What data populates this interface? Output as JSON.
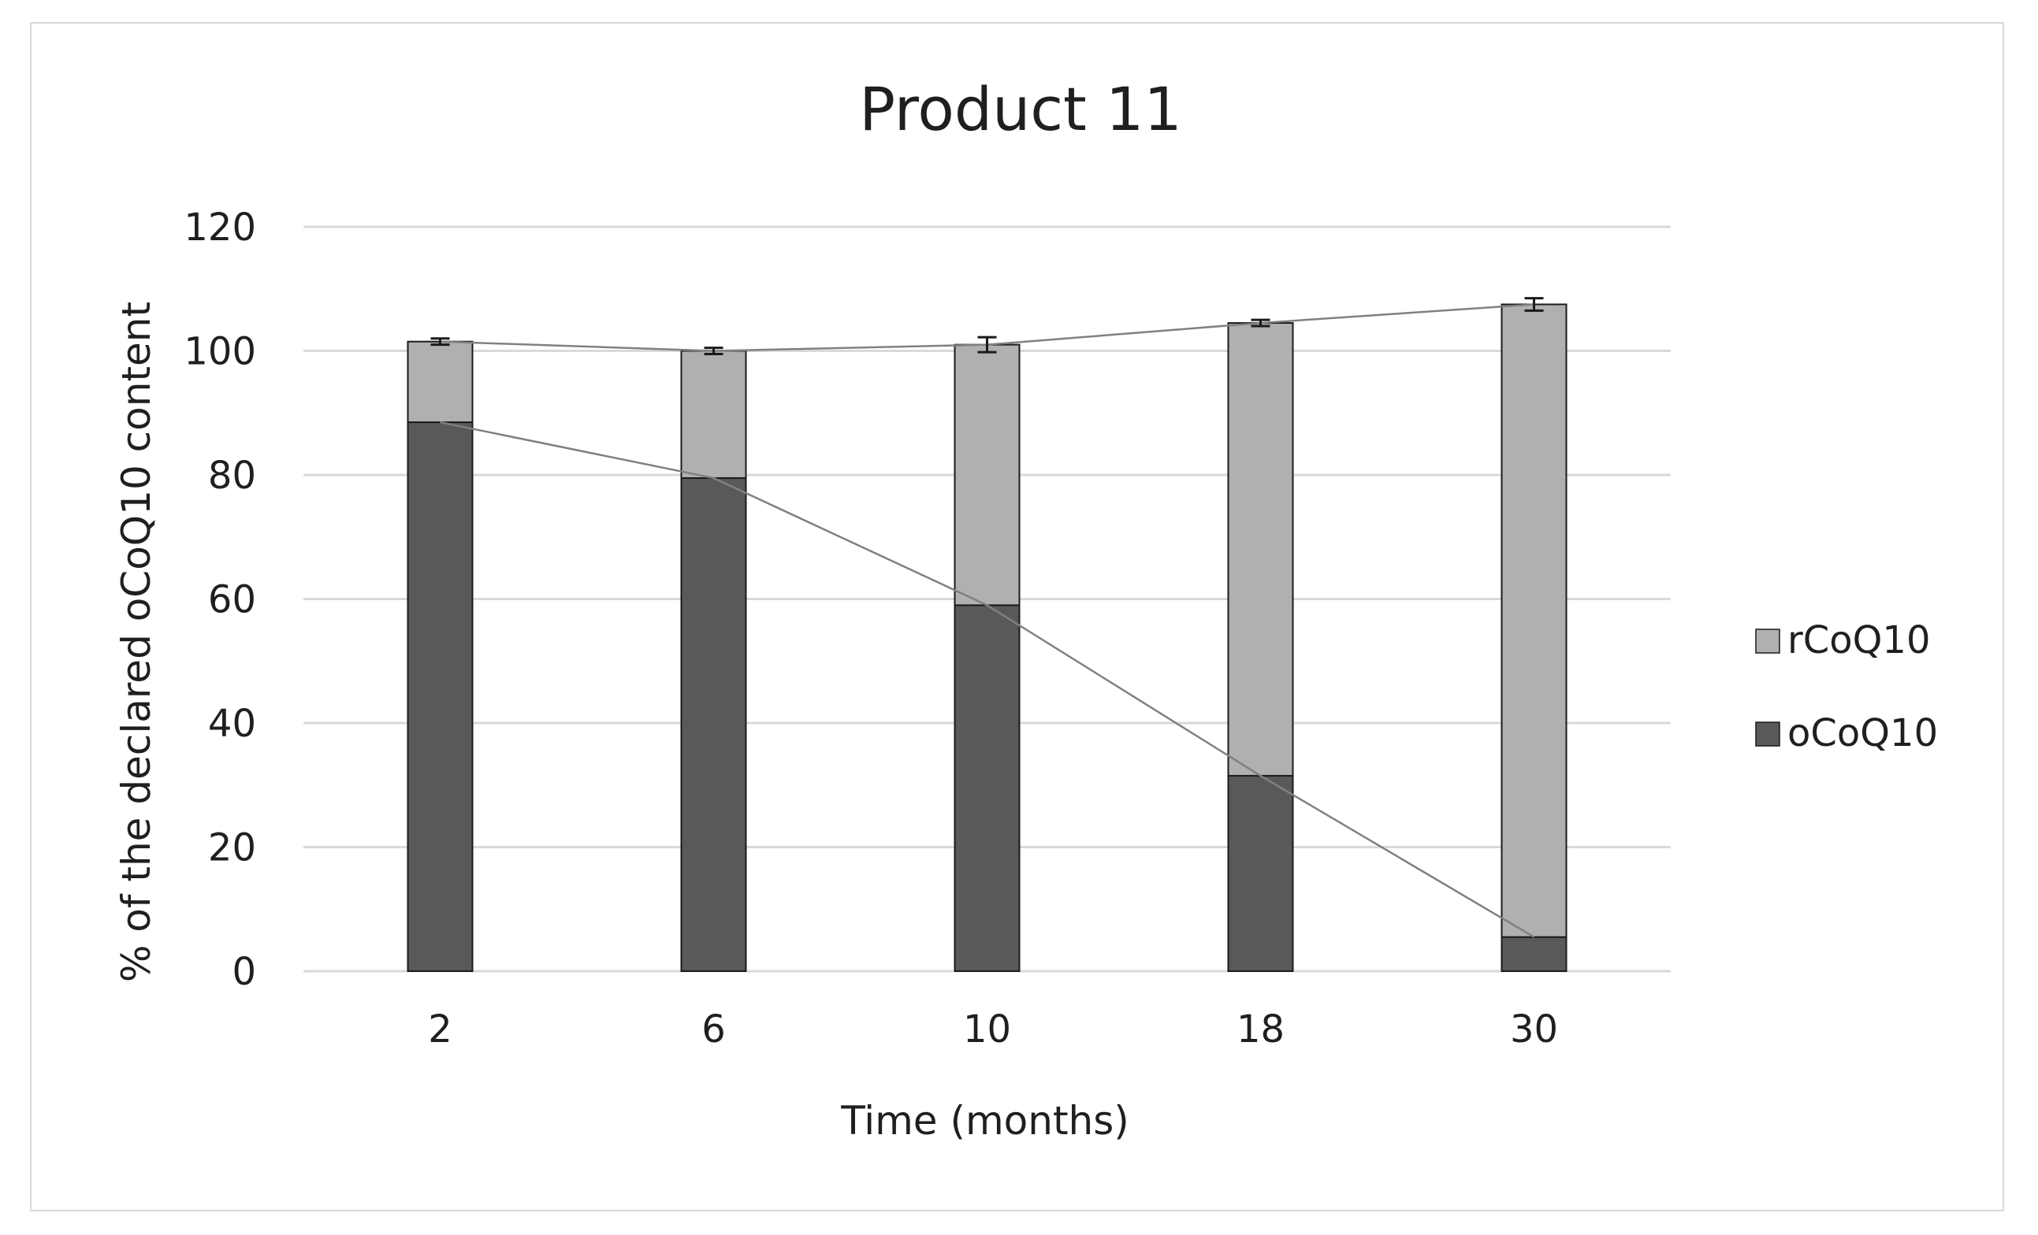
{
  "chart_data": {
    "type": "bar",
    "stacked": true,
    "title": "Product 11",
    "xlabel": "Time (months)",
    "ylabel": "% of the declared oCoQ10  content",
    "categories": [
      "2",
      "6",
      "10",
      "18",
      "30"
    ],
    "ylim": [
      0,
      120
    ],
    "yticks": [
      0,
      20,
      40,
      60,
      80,
      100,
      120
    ],
    "grid": true,
    "legend_position": "right",
    "series": [
      {
        "name": "oCoQ10",
        "color": "#595959",
        "values": [
          88.5,
          79.5,
          59,
          31.5,
          5.5
        ]
      },
      {
        "name": "rCoQ10",
        "color": "#b0b0b0",
        "values": [
          13,
          20.5,
          42,
          73,
          102
        ]
      }
    ],
    "totals": [
      101.5,
      100,
      101,
      104.5,
      107.5
    ],
    "error_bars": [
      0.5,
      0.5,
      1.2,
      0.5,
      1.0
    ],
    "trend_lines": true
  }
}
